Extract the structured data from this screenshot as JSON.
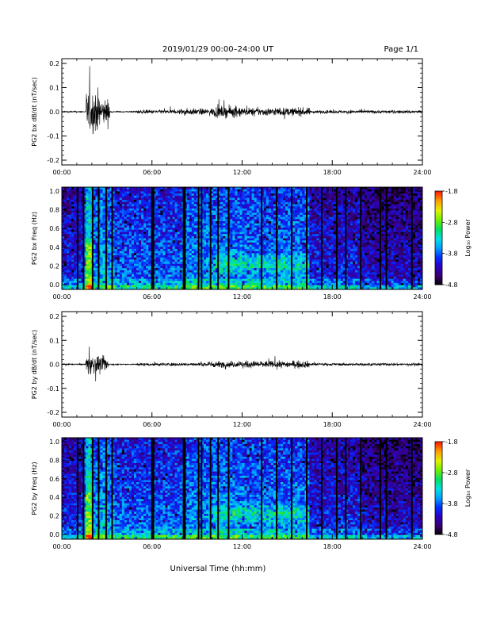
{
  "header": {
    "title": "2019/01/29  00:00–24:00 UT",
    "page": "Page 1/1"
  },
  "xaxis_title": "Universal Time (hh:mm)",
  "colors": {
    "trace": "#000000",
    "background": "#ffffff",
    "colormap": [
      "#000000",
      "#3a0070",
      "#2a00c0",
      "#0030ff",
      "#00a0ff",
      "#00e0e0",
      "#00e060",
      "#70f000",
      "#e0f000",
      "#ffa000",
      "#ff2000"
    ]
  },
  "chart_data": [
    {
      "id": "bx-dbdt",
      "type": "line",
      "ylabel": "PG2 bx dB/dt (nT/sec)",
      "xlim": [
        0,
        24
      ],
      "ylim": [
        -0.2,
        0.2
      ],
      "xticks": [
        "00:00",
        "06:00",
        "12:00",
        "18:00",
        "24:00"
      ],
      "yticks": [
        "0.2",
        "0.1",
        "0.0",
        "-0.1",
        "-0.2"
      ],
      "activity": [
        {
          "start": 1.6,
          "end": 2.5,
          "amp": 0.13
        },
        {
          "start": 2.5,
          "end": 3.2,
          "amp": 0.08
        },
        {
          "start": 5.0,
          "end": 7.8,
          "amp": 0.012
        },
        {
          "start": 7.8,
          "end": 10.0,
          "amp": 0.02
        },
        {
          "start": 10.0,
          "end": 12.0,
          "amp": 0.035
        },
        {
          "start": 12.0,
          "end": 16.5,
          "amp": 0.025
        },
        {
          "start": 16.5,
          "end": 24.0,
          "amp": 0.01
        }
      ]
    },
    {
      "id": "bx-spec",
      "type": "heatmap",
      "ylabel": "PG2 bx Freq (Hz)",
      "xlim": [
        0,
        24
      ],
      "ylim": [
        0.0,
        1.0
      ],
      "xticks": [
        "00:00",
        "06:00",
        "12:00",
        "18:00",
        "24:00"
      ],
      "yticks": [
        "1.0",
        "0.8",
        "0.6",
        "0.4",
        "0.2",
        "0.0"
      ],
      "colorbar": {
        "label": "Log₁₀ Power",
        "ticks": [
          "-1.8",
          "-2.8",
          "-3.8",
          "-4.8"
        ],
        "range": [
          -4.8,
          -1.8
        ]
      },
      "dark_columns": [
        1.05,
        1.45,
        2.05,
        2.45,
        2.95,
        3.35,
        6.0,
        6.1,
        8.1,
        8.2,
        9.1,
        9.3,
        9.9,
        10.4,
        11.1,
        13.3,
        14.3,
        15.3,
        16.3,
        17.3,
        18.3,
        18.9,
        19.9,
        21.2,
        21.6,
        23.3
      ]
    },
    {
      "id": "by-dbdt",
      "type": "line",
      "ylabel": "PG2 by dB/dt (nT/sec)",
      "xlim": [
        0,
        24
      ],
      "ylim": [
        -0.2,
        0.2
      ],
      "xticks": [
        "00:00",
        "06:00",
        "12:00",
        "18:00",
        "24:00"
      ],
      "yticks": [
        "0.2",
        "0.1",
        "0.0",
        "-0.1",
        "-0.2"
      ],
      "activity": [
        {
          "start": 1.6,
          "end": 2.4,
          "amp": 0.06
        },
        {
          "start": 2.4,
          "end": 3.1,
          "amp": 0.045
        },
        {
          "start": 5.0,
          "end": 9.5,
          "amp": 0.01
        },
        {
          "start": 9.5,
          "end": 12.0,
          "amp": 0.02
        },
        {
          "start": 12.0,
          "end": 16.5,
          "amp": 0.022
        },
        {
          "start": 16.5,
          "end": 24.0,
          "amp": 0.008
        }
      ]
    },
    {
      "id": "by-spec",
      "type": "heatmap",
      "ylabel": "PG2 by Freq (Hz)",
      "xlim": [
        0,
        24
      ],
      "ylim": [
        0.0,
        1.0
      ],
      "xticks": [
        "00:00",
        "06:00",
        "12:00",
        "18:00",
        "24:00"
      ],
      "yticks": [
        "1.0",
        "0.8",
        "0.6",
        "0.4",
        "0.2",
        "0.0"
      ],
      "colorbar": {
        "label": "Log₁₀ Power",
        "ticks": [
          "-1.8",
          "-2.8",
          "-3.8",
          "-4.8"
        ],
        "range": [
          -4.8,
          -1.8
        ]
      },
      "dark_columns": [
        1.05,
        1.45,
        2.05,
        2.45,
        2.95,
        3.35,
        6.0,
        6.1,
        8.1,
        8.2,
        9.1,
        9.3,
        9.9,
        10.4,
        11.1,
        13.3,
        14.3,
        15.3,
        16.3,
        17.3,
        18.3,
        18.9,
        19.9,
        21.2,
        21.6,
        23.3
      ]
    }
  ]
}
